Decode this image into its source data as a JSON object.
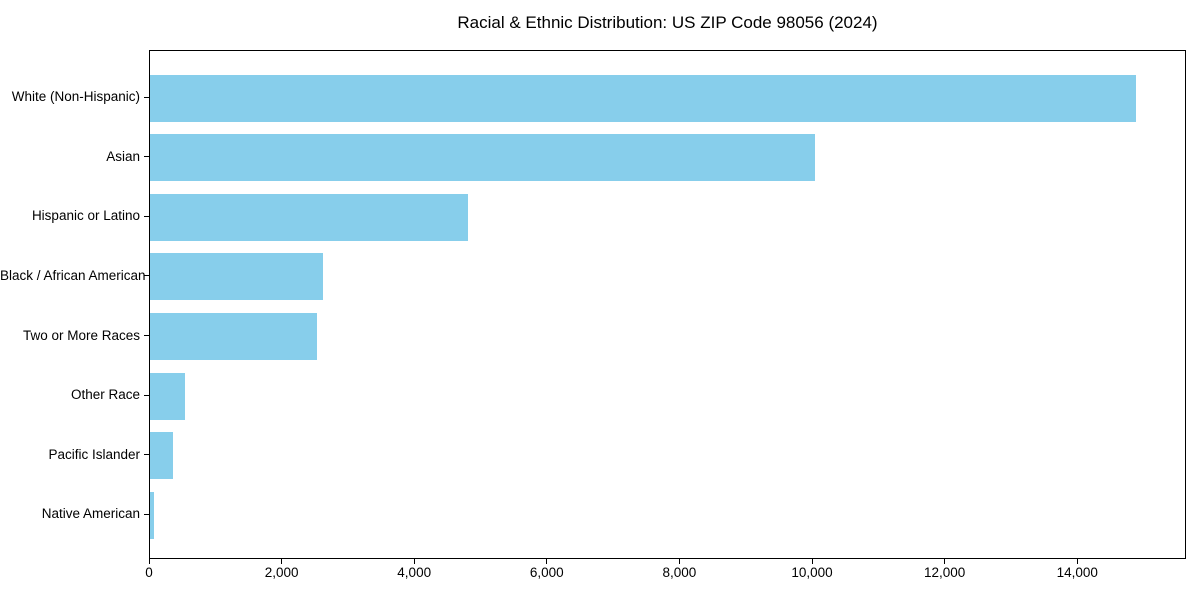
{
  "page": {
    "background_color": "#ffffff",
    "text_color": "#000000"
  },
  "chart_data": {
    "type": "bar",
    "orientation": "horizontal",
    "title": "Racial & Ethnic Distribution: US ZIP Code 98056 (2024)",
    "categories": [
      "White (Non-Hispanic)",
      "Asian",
      "Hispanic or Latino",
      "Black / African American",
      "Two or More Races",
      "Other Race",
      "Pacific Islander",
      "Native American"
    ],
    "values": [
      14900,
      10050,
      4810,
      2620,
      2520,
      530,
      350,
      65
    ],
    "xlabel": "",
    "ylabel": "",
    "xlim": [
      0,
      15640
    ],
    "x_ticks": [
      0,
      2000,
      4000,
      6000,
      8000,
      10000,
      12000,
      14000
    ],
    "x_tick_labels": [
      "0",
      "2,000",
      "4,000",
      "6,000",
      "8,000",
      "10,000",
      "12,000",
      "14,000"
    ],
    "bar_color": "#87CEEB",
    "spine_color": "#000000",
    "grid": false,
    "legend": null
  }
}
